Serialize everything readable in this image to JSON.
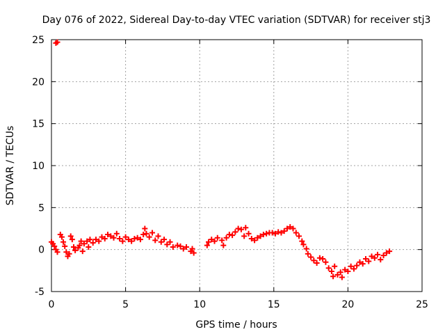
{
  "chart_data": {
    "type": "scatter",
    "title": "Day 076 of 2022, Sidereal Day-to-day VTEC variation (SDTVAR) for receiver stj3",
    "xlabel": "GPS time / hours",
    "ylabel": "SDTVAR / TECUs",
    "xlim": [
      0,
      25
    ],
    "ylim": [
      -5,
      25
    ],
    "xticks": [
      0,
      5,
      10,
      15,
      20,
      25
    ],
    "yticks": [
      -5,
      0,
      5,
      10,
      15,
      20,
      25
    ],
    "x_tick_labels": [
      "0",
      "5",
      "10",
      "15",
      "20",
      "25"
    ],
    "y_tick_labels": [
      "-5",
      "0",
      "5",
      "10",
      "15",
      "20",
      "25"
    ],
    "grid": true,
    "marker": "plus",
    "series_color": "#ff0000",
    "series": [
      {
        "name": "SDTVAR",
        "points": [
          [
            0.3,
            24.6
          ],
          [
            0.4,
            24.7
          ],
          [
            0.0,
            0.9
          ],
          [
            0.1,
            0.7
          ],
          [
            0.2,
            0.4
          ],
          [
            0.3,
            0.0
          ],
          [
            0.4,
            -0.3
          ],
          [
            0.6,
            1.8
          ],
          [
            0.7,
            1.5
          ],
          [
            0.8,
            0.9
          ],
          [
            0.9,
            0.4
          ],
          [
            1.0,
            -0.3
          ],
          [
            1.1,
            -0.8
          ],
          [
            1.2,
            -0.5
          ],
          [
            1.3,
            1.6
          ],
          [
            1.4,
            1.2
          ],
          [
            1.5,
            0.3
          ],
          [
            1.6,
            -0.1
          ],
          [
            1.8,
            0.2
          ],
          [
            1.9,
            0.5
          ],
          [
            2.0,
            1.0
          ],
          [
            2.1,
            -0.2
          ],
          [
            2.2,
            0.7
          ],
          [
            2.4,
            1.0
          ],
          [
            2.5,
            0.3
          ],
          [
            2.6,
            1.2
          ],
          [
            2.8,
            0.8
          ],
          [
            3.0,
            1.2
          ],
          [
            3.2,
            1.0
          ],
          [
            3.4,
            1.5
          ],
          [
            3.6,
            1.3
          ],
          [
            3.8,
            1.8
          ],
          [
            4.0,
            1.6
          ],
          [
            4.2,
            1.4
          ],
          [
            4.4,
            1.9
          ],
          [
            4.6,
            1.3
          ],
          [
            4.8,
            1.0
          ],
          [
            5.0,
            1.5
          ],
          [
            5.2,
            1.2
          ],
          [
            5.4,
            1.0
          ],
          [
            5.6,
            1.3
          ],
          [
            5.8,
            1.4
          ],
          [
            6.0,
            1.2
          ],
          [
            6.2,
            1.8
          ],
          [
            6.3,
            2.5
          ],
          [
            6.4,
            1.9
          ],
          [
            6.6,
            1.5
          ],
          [
            6.8,
            2.0
          ],
          [
            7.0,
            1.1
          ],
          [
            7.2,
            1.6
          ],
          [
            7.4,
            0.9
          ],
          [
            7.6,
            1.2
          ],
          [
            7.8,
            0.6
          ],
          [
            8.0,
            0.9
          ],
          [
            8.2,
            0.3
          ],
          [
            8.5,
            0.5
          ],
          [
            8.7,
            0.4
          ],
          [
            8.9,
            0.1
          ],
          [
            9.1,
            0.3
          ],
          [
            9.4,
            -0.2
          ],
          [
            9.5,
            0.1
          ],
          [
            9.6,
            -0.4
          ],
          [
            10.5,
            0.5
          ],
          [
            10.6,
            0.9
          ],
          [
            10.8,
            1.2
          ],
          [
            11.0,
            1.0
          ],
          [
            11.2,
            1.4
          ],
          [
            11.5,
            1.1
          ],
          [
            11.6,
            0.5
          ],
          [
            11.8,
            1.4
          ],
          [
            12.0,
            1.8
          ],
          [
            12.2,
            1.7
          ],
          [
            12.4,
            2.1
          ],
          [
            12.6,
            2.5
          ],
          [
            12.8,
            2.4
          ],
          [
            13.0,
            1.6
          ],
          [
            13.1,
            2.6
          ],
          [
            13.3,
            1.9
          ],
          [
            13.5,
            1.3
          ],
          [
            13.7,
            1.1
          ],
          [
            13.9,
            1.4
          ],
          [
            14.1,
            1.6
          ],
          [
            14.3,
            1.8
          ],
          [
            14.5,
            1.9
          ],
          [
            14.7,
            2.0
          ],
          [
            14.9,
            2.0
          ],
          [
            15.1,
            1.9
          ],
          [
            15.3,
            2.1
          ],
          [
            15.5,
            2.0
          ],
          [
            15.7,
            2.2
          ],
          [
            15.9,
            2.5
          ],
          [
            16.1,
            2.7
          ],
          [
            16.3,
            2.5
          ],
          [
            16.5,
            2.0
          ],
          [
            16.7,
            1.6
          ],
          [
            16.9,
            1.0
          ],
          [
            17.0,
            0.6
          ],
          [
            17.2,
            0.1
          ],
          [
            17.3,
            -0.5
          ],
          [
            17.5,
            -0.9
          ],
          [
            17.7,
            -1.3
          ],
          [
            17.9,
            -1.6
          ],
          [
            18.1,
            -1.0
          ],
          [
            18.3,
            -1.1
          ],
          [
            18.5,
            -1.5
          ],
          [
            18.7,
            -2.2
          ],
          [
            18.9,
            -2.6
          ],
          [
            19.0,
            -3.2
          ],
          [
            19.1,
            -2.0
          ],
          [
            19.3,
            -3.0
          ],
          [
            19.5,
            -2.7
          ],
          [
            19.6,
            -3.3
          ],
          [
            19.8,
            -2.4
          ],
          [
            20.0,
            -2.6
          ],
          [
            20.2,
            -2.0
          ],
          [
            20.4,
            -2.3
          ],
          [
            20.6,
            -1.9
          ],
          [
            20.8,
            -1.5
          ],
          [
            21.0,
            -1.7
          ],
          [
            21.2,
            -1.1
          ],
          [
            21.4,
            -1.4
          ],
          [
            21.6,
            -0.8
          ],
          [
            21.8,
            -1.0
          ],
          [
            22.0,
            -0.6
          ],
          [
            22.2,
            -1.2
          ],
          [
            22.4,
            -0.7
          ],
          [
            22.6,
            -0.4
          ],
          [
            22.8,
            -0.2
          ]
        ]
      }
    ]
  }
}
